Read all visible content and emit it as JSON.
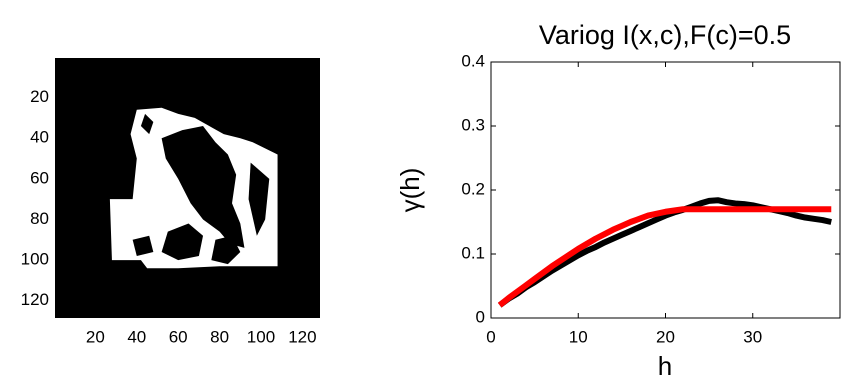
{
  "chart_data": [
    {
      "type": "image",
      "xlim": [
        0.5,
        128.5
      ],
      "ylim": [
        0.5,
        128.5
      ],
      "y_reversed": true,
      "xticks": [
        20,
        40,
        60,
        80,
        100,
        120
      ],
      "yticks": [
        20,
        40,
        60,
        80,
        100,
        120
      ]
    },
    {
      "type": "line",
      "title": "Variog I(x,c),F(c)=0.5",
      "x_label": "h",
      "y_label": "γ(h)",
      "x": [
        1,
        2,
        3,
        4,
        5,
        6,
        7,
        8,
        9,
        10,
        11,
        12,
        13,
        14,
        15,
        16,
        17,
        18,
        19,
        20,
        21,
        22,
        23,
        24,
        25,
        26,
        27,
        28,
        29,
        30,
        31,
        32,
        33,
        34,
        35,
        36,
        37,
        38,
        39
      ],
      "series": [
        {
          "color": "#000000",
          "values": [
            0.02,
            0.03,
            0.038,
            0.048,
            0.056,
            0.065,
            0.074,
            0.082,
            0.09,
            0.098,
            0.105,
            0.111,
            0.118,
            0.124,
            0.13,
            0.136,
            0.142,
            0.148,
            0.154,
            0.16,
            0.165,
            0.169,
            0.174,
            0.179,
            0.183,
            0.184,
            0.181,
            0.179,
            0.178,
            0.176,
            0.173,
            0.17,
            0.167,
            0.164,
            0.16,
            0.157,
            0.155,
            0.153,
            0.15
          ]
        },
        {
          "color": "#ff0000",
          "values": [
            0.02,
            0.031,
            0.041,
            0.051,
            0.061,
            0.071,
            0.081,
            0.09,
            0.099,
            0.108,
            0.116,
            0.124,
            0.131,
            0.138,
            0.144,
            0.15,
            0.155,
            0.16,
            0.163,
            0.166,
            0.168,
            0.17,
            0.17,
            0.17,
            0.17,
            0.17,
            0.17,
            0.17,
            0.17,
            0.17,
            0.17,
            0.17,
            0.17,
            0.17,
            0.17,
            0.17,
            0.17,
            0.17,
            0.17
          ]
        }
      ],
      "xlim": [
        0,
        40
      ],
      "ylim": [
        0,
        0.4
      ],
      "xticks": [
        0,
        10,
        20,
        30
      ],
      "yticks": [
        0,
        0.1,
        0.2,
        0.3,
        0.4
      ]
    }
  ]
}
